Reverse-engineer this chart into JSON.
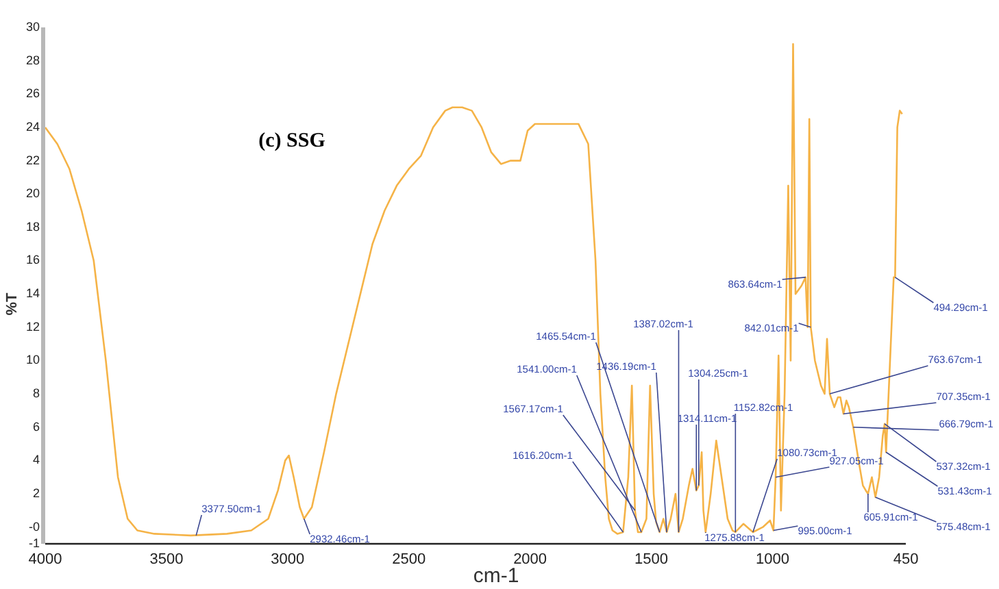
{
  "chart_data": {
    "type": "line",
    "title": "(c) SSG",
    "xlabel": "cm-1",
    "ylabel": "%T",
    "x": [
      4000,
      3950,
      3900,
      3850,
      3800,
      3750,
      3700,
      3660,
      3620,
      3550,
      3400,
      3250,
      3150,
      3080,
      3040,
      3010,
      2995,
      2975,
      2950,
      2932.46,
      2900,
      2850,
      2800,
      2750,
      2700,
      2650,
      2600,
      2550,
      2500,
      2450,
      2400,
      2350,
      2320,
      2280,
      2240,
      2200,
      2160,
      2120,
      2080,
      2040,
      2010,
      1980,
      1950,
      1900,
      1860,
      1830,
      1800,
      1760,
      1730,
      1710,
      1690,
      1675,
      1660,
      1640,
      1616.2,
      1595,
      1580,
      1567.17,
      1555,
      1541,
      1520,
      1505,
      1490,
      1480,
      1465.54,
      1450,
      1436.19,
      1420,
      1400,
      1387.02,
      1370,
      1345,
      1330,
      1314.11,
      1304.25,
      1292,
      1285,
      1275.88,
      1255,
      1232,
      1210,
      1185,
      1165,
      1152.82,
      1120,
      1080.73,
      1040,
      1010,
      996,
      987,
      975,
      965,
      950,
      935,
      925,
      915,
      905,
      880,
      863.64,
      855,
      848,
      842.01,
      825,
      800,
      785,
      775,
      763.67,
      745,
      730,
      720,
      707.35,
      695,
      685,
      666.79,
      645,
      627.05,
      615,
      605.91,
      590,
      575.48,
      560,
      545,
      537.32,
      531.43,
      515,
      500,
      494.29,
      485,
      475,
      465
    ],
    "series": [
      {
        "color": "#f5b347",
        "values": [
          24,
          23,
          21.5,
          19,
          16,
          10,
          3,
          0.5,
          -0.2,
          -0.4,
          -0.5,
          -0.4,
          -0.2,
          0.5,
          2.2,
          4,
          4.3,
          3,
          1.2,
          0.5,
          1.2,
          4.5,
          8,
          11,
          14,
          17,
          19,
          20.5,
          21.5,
          22.3,
          24,
          25,
          25.2,
          25.2,
          25,
          24,
          22.5,
          21.8,
          22,
          22,
          23.8,
          24.2,
          24.2,
          24.2,
          24.2,
          24.2,
          24.2,
          23,
          16,
          8,
          3,
          0.5,
          -0.2,
          -0.4,
          -0.3,
          3,
          8.5,
          1,
          -0.3,
          -0.3,
          0.5,
          8.5,
          2,
          0.3,
          -0.3,
          0.5,
          -0.3,
          0.5,
          2,
          -0.3,
          0.5,
          2.5,
          3.5,
          2.2,
          2.5,
          4.5,
          1,
          -0.3,
          2,
          5.2,
          3,
          0.5,
          -0.2,
          -0.3,
          0.2,
          -0.3,
          0,
          0.4,
          -0.2,
          3,
          10.3,
          1,
          8,
          20.5,
          10,
          29,
          14,
          14.5,
          15,
          12,
          24.5,
          12,
          10,
          8.5,
          8,
          11.3,
          8,
          7.2,
          7.8,
          7.8,
          6.8,
          7.6,
          7.2,
          6,
          4,
          2.5,
          2.2,
          2,
          3,
          1.8,
          3,
          5.5,
          6.2,
          4.5,
          10,
          15,
          15,
          24,
          25,
          24.8
        ]
      }
    ],
    "xlim": [
      4000,
      450
    ],
    "xticks": [
      4000,
      3500,
      3000,
      2500,
      2000,
      1500,
      1000,
      450
    ],
    "ylim": [
      -1,
      30
    ],
    "yticks": [
      {
        "value": -1,
        "label": "-1"
      },
      {
        "value": 0,
        "label": "-0"
      },
      2,
      4,
      6,
      8,
      10,
      12,
      14,
      16,
      18,
      20,
      22,
      24,
      26,
      28,
      30
    ],
    "grid": false,
    "legend": false,
    "marker": "none",
    "annotations": [
      {
        "text": "3377.50cm-1",
        "x": 3377.5,
        "y": -0.5
      },
      {
        "text": "2932.46cm-1",
        "x": 2932.46,
        "y": 0.5
      },
      {
        "text": "1616.20cm-1",
        "x": 1616.2,
        "y": -0.3
      },
      {
        "text": "1567.17cm-1",
        "x": 1567.17,
        "y": 1
      },
      {
        "text": "1541.00cm-1",
        "x": 1541,
        "y": -0.3
      },
      {
        "text": "1465.54cm-1",
        "x": 1465.54,
        "y": -0.3
      },
      {
        "text": "1436.19cm-1",
        "x": 1436.19,
        "y": -0.3
      },
      {
        "text": "1387.02cm-1",
        "x": 1387.02,
        "y": -0.3
      },
      {
        "text": "1304.25cm-1",
        "x": 1304.25,
        "y": 2.5
      },
      {
        "text": "1314.11cm-1",
        "x": 1314.11,
        "y": 2.2
      },
      {
        "text": "1152.82cm-1",
        "x": 1152.82,
        "y": -0.3
      },
      {
        "text": "1275.88cm-1",
        "x": 1275.88,
        "y": -0.3
      },
      {
        "text": "1080.73cm-1",
        "x": 1080.73,
        "y": -0.3
      },
      {
        "text": "995.00cm-1",
        "x": 996,
        "y": -0.2
      },
      {
        "text": "927.05cm-1",
        "x": 987,
        "y": 3
      },
      {
        "text": "863.64cm-1",
        "x": 863.64,
        "y": 15
      },
      {
        "text": "842.01cm-1",
        "x": 842.01,
        "y": 12
      },
      {
        "text": "494.29cm-1",
        "x": 494.29,
        "y": 15
      },
      {
        "text": "763.67cm-1",
        "x": 763.67,
        "y": 8
      },
      {
        "text": "707.35cm-1",
        "x": 707.35,
        "y": 6.8
      },
      {
        "text": "666.79cm-1",
        "x": 666.79,
        "y": 6
      },
      {
        "text": "537.32cm-1",
        "x": 537.32,
        "y": 6.2
      },
      {
        "text": "531.43cm-1",
        "x": 531.43,
        "y": 4.5
      },
      {
        "text": "575.48cm-1",
        "x": 575.48,
        "y": 1.8
      },
      {
        "text": "605.91cm-1",
        "x": 605.91,
        "y": 2
      }
    ]
  }
}
